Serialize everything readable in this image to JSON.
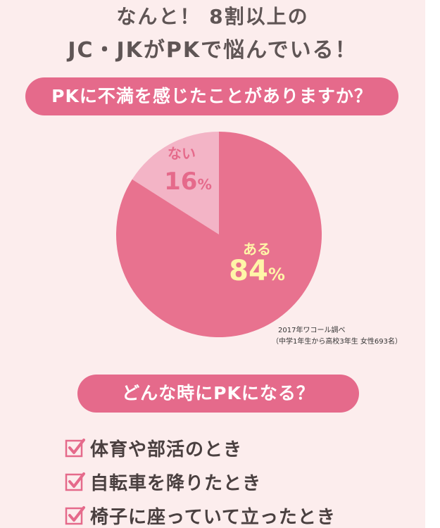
{
  "headline": {
    "line1": "なんと！ 8割以上の",
    "line2": "JC・JKがPKで悩んでいる！"
  },
  "question1": "PKに不満を感じたことがありますか？",
  "pie": {
    "segments": [
      {
        "label": "ない",
        "value": 16,
        "value_text": "16",
        "color": "#f3b4c6"
      },
      {
        "label": "ある",
        "value": 84,
        "value_text": "84",
        "color": "#e8728f"
      }
    ],
    "percent_sign": "%"
  },
  "source": {
    "line1": "2017年ワコール調べ",
    "line2": "（中学1年生から高校3年生 女性693名）"
  },
  "question2": "どんな時にPKになる？",
  "checklist": {
    "icon": "checkbox-checked-icon",
    "items": [
      "体育や部活のとき",
      "自転車を降りたとき",
      "椅子に座っていて立ったとき"
    ]
  },
  "colors": {
    "background": "#fceded",
    "accent": "#e56a8b",
    "highlight": "#fff5a8",
    "text": "#5f5555"
  }
}
